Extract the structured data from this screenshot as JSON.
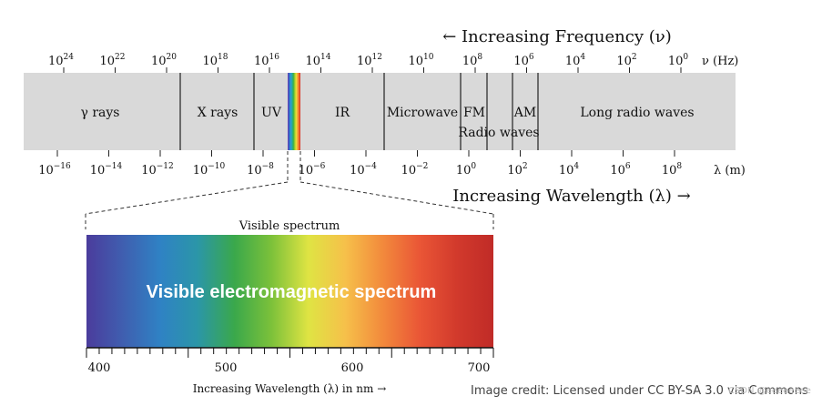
{
  "colors": {
    "band": "#d9d9d9",
    "visible_strip": [
      "#7a3fb8",
      "#2f5fbf",
      "#2f9ad8",
      "#29a8a8",
      "#35b04a",
      "#9acb2e",
      "#e8e23a",
      "#f4a53a",
      "#ee6b2e",
      "#d42a2a"
    ],
    "spectrum_gradient": [
      "#4b3c9c",
      "#3f5fb0",
      "#2f82c4",
      "#2b96a8",
      "#3aa84b",
      "#7cc13a",
      "#dfe443",
      "#f6c04a",
      "#f28a3c",
      "#ea5636",
      "#d23a2c",
      "#c02b27"
    ]
  },
  "frequency": {
    "title": "← Increasing Frequency (ν)",
    "unit": "ν (Hz)",
    "ticks": [
      {
        "base": "10",
        "exp": "24"
      },
      {
        "base": "10",
        "exp": "22"
      },
      {
        "base": "10",
        "exp": "20"
      },
      {
        "base": "10",
        "exp": "18"
      },
      {
        "base": "10",
        "exp": "16"
      },
      {
        "base": "10",
        "exp": "14"
      },
      {
        "base": "10",
        "exp": "12"
      },
      {
        "base": "10",
        "exp": "10"
      },
      {
        "base": "10",
        "exp": "8"
      },
      {
        "base": "10",
        "exp": "6"
      },
      {
        "base": "10",
        "exp": "4"
      },
      {
        "base": "10",
        "exp": "2"
      },
      {
        "base": "10",
        "exp": "0"
      }
    ]
  },
  "wavelength": {
    "title": "Increasing Wavelength (λ) →",
    "unit": "λ (m)",
    "ticks": [
      {
        "base": "10",
        "exp": "−16"
      },
      {
        "base": "10",
        "exp": "−14"
      },
      {
        "base": "10",
        "exp": "−12"
      },
      {
        "base": "10",
        "exp": "−10"
      },
      {
        "base": "10",
        "exp": "−8"
      },
      {
        "base": "10",
        "exp": "−6"
      },
      {
        "base": "10",
        "exp": "−4"
      },
      {
        "base": "10",
        "exp": "−2"
      },
      {
        "base": "10",
        "exp": "0"
      },
      {
        "base": "10",
        "exp": "2"
      },
      {
        "base": "10",
        "exp": "4"
      },
      {
        "base": "10",
        "exp": "6"
      },
      {
        "base": "10",
        "exp": "8"
      }
    ]
  },
  "regions": [
    {
      "label": "γ rays"
    },
    {
      "label": "X rays"
    },
    {
      "label": "UV"
    },
    {
      "label": "IR"
    },
    {
      "label": "Microwave"
    },
    {
      "label": "FM"
    },
    {
      "label": "AM"
    },
    {
      "label": "Long radio waves"
    }
  ],
  "radio_waves_label": "Radio waves",
  "visible": {
    "title": "Visible spectrum",
    "overlay": "Visible electromagnetic spectrum",
    "axis_labels": [
      "400",
      "500",
      "600",
      "700"
    ],
    "axis_title": "Increasing Wavelength (λ) in nm →"
  },
  "credit": "Image credit: Licensed under CC BY-SA 3.0 via Commons",
  "watermark": "CSDN @eeeeeeee"
}
